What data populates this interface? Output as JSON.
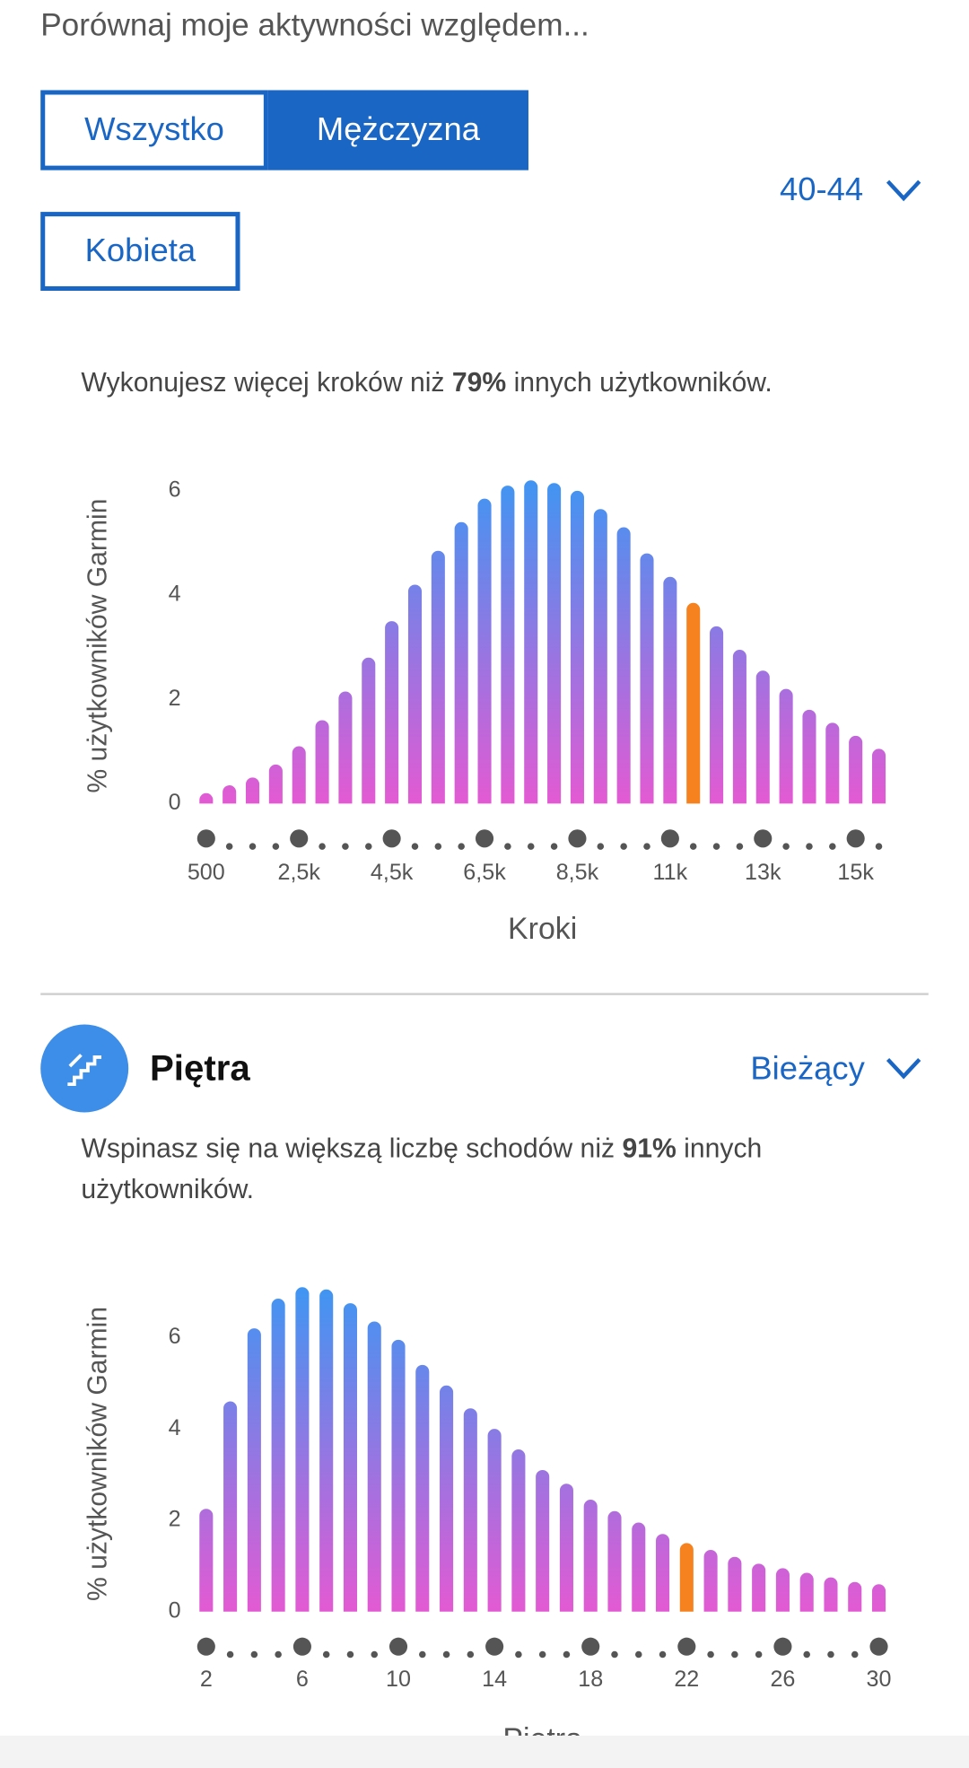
{
  "header": {
    "title": "Porównaj moje aktywności względem..."
  },
  "filters": {
    "buttons": [
      "Wszystko",
      "Mężczyzna",
      "Kobieta"
    ],
    "selected": 1,
    "age_dropdown": "40-44"
  },
  "steps_section": {
    "summary": {
      "before": "Wykonujesz więcej kroków niż ",
      "highlight": "79%",
      "after": " innych użytkowników."
    }
  },
  "floors_section": {
    "title": "Piętra",
    "period_dropdown": "Bieżący",
    "summary": {
      "before": "Wspinasz się na większą liczbę schodów niż ",
      "highlight": "91%",
      "after": " innych użytkowników."
    }
  },
  "chart_data": [
    {
      "type": "bar",
      "y_label": "% użytkowników Garmin",
      "x_label": "Kroki",
      "categories": [
        "500",
        null,
        null,
        null,
        "2,5k",
        null,
        null,
        null,
        "4,5k",
        null,
        null,
        null,
        "6,5k",
        null,
        null,
        null,
        "8,5k",
        null,
        null,
        null,
        "11k",
        null,
        null,
        null,
        "13k",
        null,
        null,
        null,
        "15k",
        null
      ],
      "values": [
        0.2,
        0.35,
        0.5,
        0.75,
        1.1,
        1.6,
        2.15,
        2.8,
        3.5,
        4.2,
        4.85,
        5.4,
        5.85,
        6.1,
        6.2,
        6.15,
        6.0,
        5.65,
        5.3,
        4.8,
        4.35,
        3.85,
        3.4,
        2.95,
        2.55,
        2.2,
        1.8,
        1.55,
        1.3,
        1.05
      ],
      "ylim": [
        0,
        6.4
      ],
      "yticks": [
        0,
        2,
        4,
        6
      ],
      "gradient": [
        "#3b97f3",
        "#e35ad3"
      ],
      "highlight_index": 21,
      "highlight_color": "#f5821f"
    },
    {
      "type": "bar",
      "y_label": "% użytkowników Garmin",
      "x_label": "Piętra",
      "x": [
        2,
        3,
        4,
        5,
        6,
        7,
        8,
        9,
        10,
        11,
        12,
        13,
        14,
        15,
        16,
        17,
        18,
        19,
        20,
        21,
        22,
        23,
        24,
        25,
        26,
        27,
        28,
        29,
        30
      ],
      "values": [
        2.25,
        4.6,
        6.2,
        6.85,
        7.1,
        7.05,
        6.75,
        6.35,
        5.95,
        5.4,
        4.95,
        4.45,
        4.0,
        3.55,
        3.1,
        2.8,
        2.45,
        2.2,
        1.95,
        1.7,
        1.5,
        1.35,
        1.2,
        1.05,
        0.95,
        0.85,
        0.75,
        0.65,
        0.6
      ],
      "xlim": [
        2,
        30
      ],
      "xticks": [
        2,
        6,
        10,
        14,
        18,
        22,
        26,
        30
      ],
      "ylim": [
        0,
        7.3
      ],
      "yticks": [
        0,
        2,
        4,
        6
      ],
      "gradient": [
        "#3b97f3",
        "#e35ad3"
      ],
      "highlight_index": 20,
      "highlight_color": "#f5821f"
    }
  ]
}
